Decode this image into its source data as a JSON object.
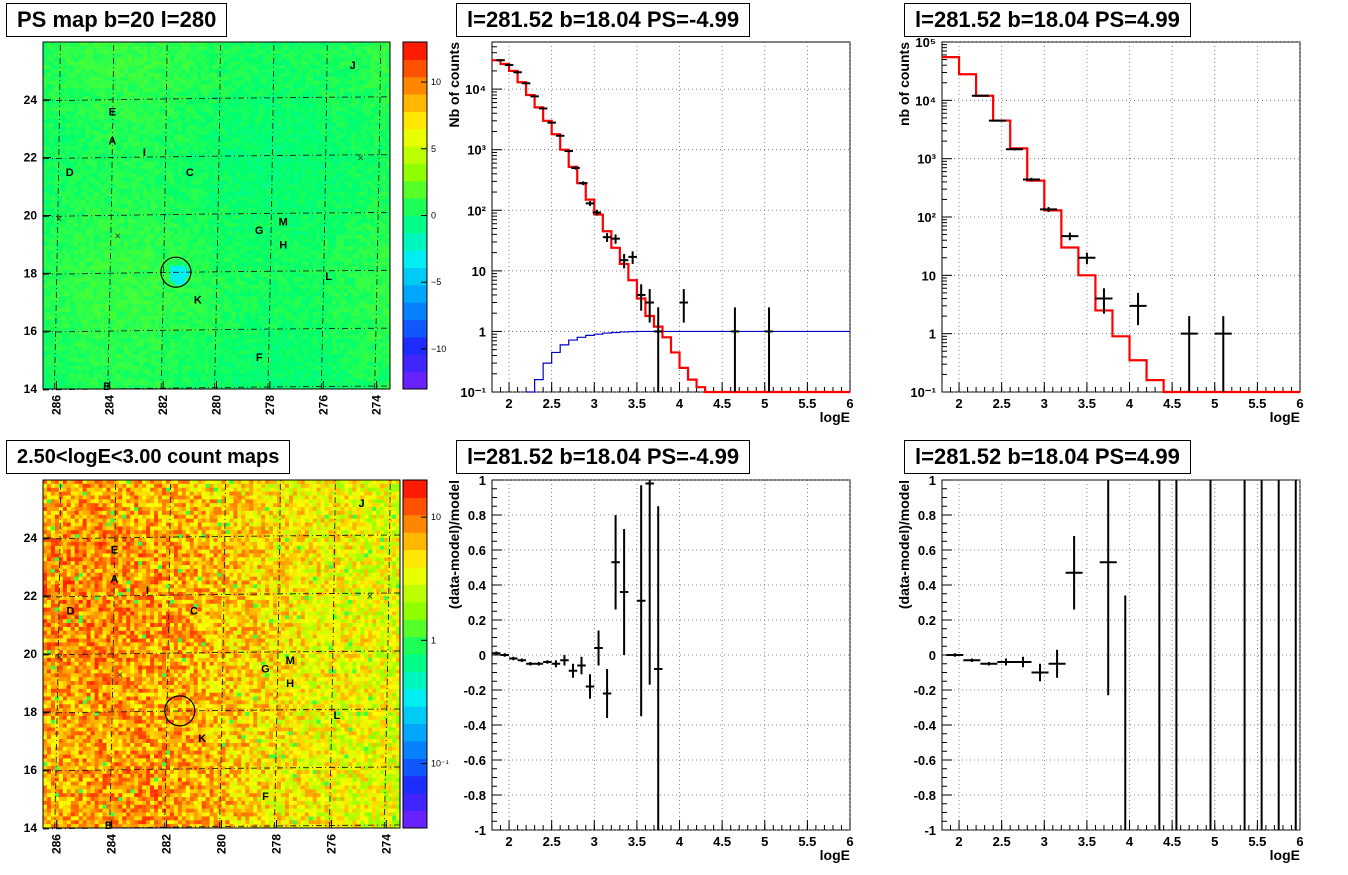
{
  "titles": {
    "ps_map": "PS map b=20 l=280",
    "count_map": "2.50<logE<3.00 count maps",
    "spec_left": "l=281.52 b=18.04 PS=-4.99",
    "spec_right": "l=281.52 b=18.04 PS=4.99",
    "ratio_left": "l=281.52 b=18.04 PS=-4.99",
    "ratio_right": "l=281.52 b=18.04 PS=4.99"
  },
  "colors": {
    "model": "#ff0000",
    "efficiency": "#0000cc",
    "data": "#000000"
  },
  "chart_data": [
    {
      "id": "ps_map",
      "type": "heatmap",
      "title": "PS map b=20 l=280",
      "xlim": [
        286.5,
        273.5
      ],
      "ylim": [
        14,
        26
      ],
      "xticks": [
        286,
        284,
        282,
        280,
        278,
        276,
        274
      ],
      "yticks": [
        14,
        16,
        18,
        20,
        22,
        24
      ],
      "colorbar": {
        "scale": "linear",
        "range": [
          -13,
          13
        ],
        "ticks": [
          -10,
          -5,
          0,
          5,
          10
        ],
        "tick_labels": [
          "−10",
          "−5",
          "0",
          "5",
          "10"
        ]
      },
      "sources": [
        {
          "label": "A",
          "l": 283.9,
          "b": 22.6
        },
        {
          "label": "B",
          "l": 284.1,
          "b": 14.1
        },
        {
          "label": "C",
          "l": 281.0,
          "b": 21.5
        },
        {
          "label": "D",
          "l": 285.5,
          "b": 21.5
        },
        {
          "label": "E",
          "l": 283.9,
          "b": 23.6
        },
        {
          "label": "F",
          "l": 278.4,
          "b": 15.1
        },
        {
          "label": "G",
          "l": 278.4,
          "b": 19.5
        },
        {
          "label": "H",
          "l": 277.5,
          "b": 19.0
        },
        {
          "label": "I",
          "l": 282.7,
          "b": 22.2
        },
        {
          "label": "J",
          "l": 274.9,
          "b": 25.2
        },
        {
          "label": "K",
          "l": 280.7,
          "b": 17.1
        },
        {
          "label": "L",
          "l": 275.8,
          "b": 17.9
        },
        {
          "label": "M",
          "l": 277.5,
          "b": 19.8
        }
      ],
      "markers_x": [
        {
          "l": 285.9,
          "b": 19.9
        },
        {
          "l": 283.7,
          "b": 19.3
        },
        {
          "l": 274.6,
          "b": 22.0
        }
      ],
      "circle": {
        "l": 281.52,
        "b": 18.04
      }
    },
    {
      "id": "count_map",
      "type": "heatmap",
      "title": "2.50<logE<3.00 count maps",
      "xlim": [
        286.5,
        273.5
      ],
      "ylim": [
        14,
        26
      ],
      "xticks": [
        286,
        284,
        282,
        280,
        278,
        276,
        274
      ],
      "yticks": [
        14,
        16,
        18,
        20,
        22,
        24
      ],
      "colorbar": {
        "scale": "log",
        "range": [
          0.03,
          20
        ],
        "ticks": [
          0.1,
          1,
          10
        ],
        "tick_labels": [
          "10⁻¹",
          "1",
          "10"
        ]
      },
      "sources_same_as": "ps_map"
    },
    {
      "id": "spec_left",
      "type": "line",
      "title": "l=281.52 b=18.04 PS=-4.99",
      "xlabel": "logE",
      "ylabel": "Nb of counts",
      "yscale": "log",
      "xlim": [
        1.8,
        6.0
      ],
      "ylim": [
        0.1,
        60000
      ],
      "xticks": [
        2,
        2.5,
        3,
        3.5,
        4,
        4.5,
        5,
        5.5,
        6
      ],
      "yticks": [
        0.1,
        1,
        10,
        100,
        1000,
        10000
      ],
      "ytick_labels": [
        "10⁻¹",
        "1",
        "10",
        "10²",
        "10³",
        "10⁴"
      ],
      "model_edges": [
        1.8,
        1.9,
        2.0,
        2.1,
        2.2,
        2.3,
        2.4,
        2.5,
        2.6,
        2.7,
        2.8,
        2.9,
        3.0,
        3.1,
        3.2,
        3.3,
        3.4,
        3.5,
        3.6,
        3.7,
        3.8,
        3.9,
        4.0,
        4.1,
        4.2,
        4.3,
        4.4,
        6.0
      ],
      "model_values": [
        30000,
        26000,
        20000,
        13000,
        8000,
        5000,
        3000,
        1800,
        1000,
        520,
        280,
        150,
        85,
        45,
        24,
        13,
        7,
        3.5,
        1.8,
        1.2,
        0.8,
        0.45,
        0.25,
        0.16,
        0.12,
        0.1,
        0.1
      ],
      "eff_edges": [
        2.2,
        2.3,
        2.4,
        2.5,
        2.6,
        2.7,
        2.8,
        2.9,
        3.0,
        3.1,
        3.2,
        3.3,
        3.4,
        3.5,
        3.6,
        6.0
      ],
      "eff_values": [
        0.1,
        0.16,
        0.3,
        0.45,
        0.6,
        0.72,
        0.8,
        0.86,
        0.9,
        0.94,
        0.96,
        0.98,
        0.99,
        1.0,
        1.0
      ],
      "points": [
        {
          "x": 1.9,
          "y": 30000,
          "xe": 0.05,
          "lo": 29000,
          "hi": 31000
        },
        {
          "x": 2.0,
          "y": 25000,
          "xe": 0.05,
          "lo": 24000,
          "hi": 26000
        },
        {
          "x": 2.1,
          "y": 19000,
          "xe": 0.05,
          "lo": 18000,
          "hi": 20000
        },
        {
          "x": 2.2,
          "y": 12500,
          "xe": 0.05,
          "lo": 12000,
          "hi": 13000
        },
        {
          "x": 2.3,
          "y": 7600,
          "xe": 0.05,
          "lo": 7400,
          "hi": 7800
        },
        {
          "x": 2.4,
          "y": 4800,
          "xe": 0.05,
          "lo": 4650,
          "hi": 4950
        },
        {
          "x": 2.5,
          "y": 2800,
          "xe": 0.05,
          "lo": 2700,
          "hi": 2900
        },
        {
          "x": 2.6,
          "y": 1700,
          "xe": 0.05,
          "lo": 1640,
          "hi": 1760
        },
        {
          "x": 2.7,
          "y": 950,
          "xe": 0.05,
          "lo": 910,
          "hi": 990
        },
        {
          "x": 2.78,
          "y": 500,
          "xe": 0.05,
          "lo": 470,
          "hi": 530
        },
        {
          "x": 2.87,
          "y": 280,
          "xe": 0.05,
          "lo": 260,
          "hi": 300
        },
        {
          "x": 2.95,
          "y": 130,
          "xe": 0.05,
          "lo": 118,
          "hi": 142
        },
        {
          "x": 3.03,
          "y": 92,
          "xe": 0.05,
          "lo": 82,
          "hi": 102
        },
        {
          "x": 3.15,
          "y": 36,
          "xe": 0.05,
          "lo": 30,
          "hi": 42
        },
        {
          "x": 3.25,
          "y": 34,
          "xe": 0.05,
          "lo": 28,
          "hi": 40
        },
        {
          "x": 3.35,
          "y": 15,
          "xe": 0.05,
          "lo": 11,
          "hi": 19
        },
        {
          "x": 3.45,
          "y": 17,
          "xe": 0.05,
          "lo": 13,
          "hi": 21
        },
        {
          "x": 3.55,
          "y": 4,
          "xe": 0.05,
          "lo": 2.2,
          "hi": 6
        },
        {
          "x": 3.65,
          "y": 3,
          "xe": 0.05,
          "lo": 1.4,
          "hi": 5
        },
        {
          "x": 3.75,
          "y": 1,
          "xe": 0.05,
          "lo": 0.1,
          "hi": 2.5
        },
        {
          "x": 4.05,
          "y": 3,
          "xe": 0.05,
          "lo": 1.4,
          "hi": 5
        },
        {
          "x": 4.65,
          "y": 1,
          "xe": 0.05,
          "lo": 0.1,
          "hi": 2.5
        },
        {
          "x": 5.05,
          "y": 1,
          "xe": 0.05,
          "lo": 0.1,
          "hi": 2.5
        }
      ]
    },
    {
      "id": "spec_right",
      "type": "line",
      "title": "l=281.52 b=18.04 PS=4.99",
      "xlabel": "logE",
      "ylabel": "nb of counts",
      "yscale": "log",
      "xlim": [
        1.8,
        6.0
      ],
      "ylim": [
        0.1,
        100000
      ],
      "xticks": [
        2,
        2.5,
        3,
        3.5,
        4,
        4.5,
        5,
        5.5,
        6
      ],
      "yticks": [
        0.1,
        1,
        10,
        100,
        1000,
        10000,
        100000
      ],
      "ytick_labels": [
        "10⁻¹",
        "1",
        "10",
        "10²",
        "10³",
        "10⁴",
        "10⁵"
      ],
      "model_edges": [
        1.8,
        2.0,
        2.2,
        2.4,
        2.6,
        2.8,
        3.0,
        3.2,
        3.4,
        3.6,
        3.8,
        4.0,
        4.2,
        4.4,
        6.0
      ],
      "model_values": [
        55000,
        28000,
        12000,
        4500,
        1500,
        420,
        130,
        30,
        10,
        2.5,
        0.9,
        0.35,
        0.16,
        0.1
      ],
      "points": [
        {
          "x": 2.25,
          "y": 12000,
          "xe": 0.1,
          "lo": 11700,
          "hi": 12300
        },
        {
          "x": 2.45,
          "y": 4500,
          "xe": 0.1,
          "lo": 4350,
          "hi": 4650
        },
        {
          "x": 2.65,
          "y": 1450,
          "xe": 0.1,
          "lo": 1390,
          "hi": 1510
        },
        {
          "x": 2.85,
          "y": 440,
          "xe": 0.1,
          "lo": 410,
          "hi": 470
        },
        {
          "x": 3.05,
          "y": 135,
          "xe": 0.1,
          "lo": 122,
          "hi": 148
        },
        {
          "x": 3.3,
          "y": 47,
          "xe": 0.1,
          "lo": 40,
          "hi": 54
        },
        {
          "x": 3.5,
          "y": 20,
          "xe": 0.1,
          "lo": 15.5,
          "hi": 24.5
        },
        {
          "x": 3.7,
          "y": 4,
          "xe": 0.1,
          "lo": 2.2,
          "hi": 6
        },
        {
          "x": 4.1,
          "y": 3,
          "xe": 0.1,
          "lo": 1.4,
          "hi": 5
        },
        {
          "x": 4.7,
          "y": 1,
          "xe": 0.1,
          "lo": 0.1,
          "hi": 2
        },
        {
          "x": 5.1,
          "y": 1,
          "xe": 0.1,
          "lo": 0.1,
          "hi": 2
        }
      ]
    },
    {
      "id": "ratio_left",
      "type": "scatter",
      "title": "l=281.52 b=18.04 PS=-4.99",
      "xlabel": "logE",
      "ylabel": "(data-model)/model",
      "xlim": [
        1.8,
        6.0
      ],
      "ylim": [
        -1,
        1
      ],
      "xticks": [
        2,
        2.5,
        3,
        3.5,
        4,
        4.5,
        5,
        5.5,
        6
      ],
      "yticks": [
        -1,
        -0.8,
        -0.6,
        -0.4,
        -0.2,
        0,
        0.2,
        0.4,
        0.6,
        0.8,
        1
      ],
      "points": [
        {
          "x": 1.85,
          "y": 0.01,
          "xe": 0.05,
          "lo": 0.0,
          "hi": 0.02
        },
        {
          "x": 1.95,
          "y": 0.0,
          "xe": 0.05,
          "lo": -0.01,
          "hi": 0.01
        },
        {
          "x": 2.05,
          "y": -0.02,
          "xe": 0.05,
          "lo": -0.03,
          "hi": -0.01
        },
        {
          "x": 2.15,
          "y": -0.03,
          "xe": 0.05,
          "lo": -0.04,
          "hi": -0.02
        },
        {
          "x": 2.25,
          "y": -0.05,
          "xe": 0.05,
          "lo": -0.06,
          "hi": -0.04
        },
        {
          "x": 2.35,
          "y": -0.05,
          "xe": 0.05,
          "lo": -0.06,
          "hi": -0.04
        },
        {
          "x": 2.45,
          "y": -0.04,
          "xe": 0.05,
          "lo": -0.05,
          "hi": -0.03
        },
        {
          "x": 2.55,
          "y": -0.05,
          "xe": 0.05,
          "lo": -0.07,
          "hi": -0.03
        },
        {
          "x": 2.65,
          "y": -0.03,
          "xe": 0.05,
          "lo": -0.06,
          "hi": 0.0
        },
        {
          "x": 2.75,
          "y": -0.09,
          "xe": 0.05,
          "lo": -0.13,
          "hi": -0.05
        },
        {
          "x": 2.85,
          "y": -0.06,
          "xe": 0.05,
          "lo": -0.11,
          "hi": -0.01
        },
        {
          "x": 2.95,
          "y": -0.18,
          "xe": 0.05,
          "lo": -0.25,
          "hi": -0.11
        },
        {
          "x": 3.05,
          "y": 0.04,
          "xe": 0.05,
          "lo": -0.06,
          "hi": 0.14
        },
        {
          "x": 3.15,
          "y": -0.22,
          "xe": 0.05,
          "lo": -0.36,
          "hi": -0.08
        },
        {
          "x": 3.25,
          "y": 0.53,
          "xe": 0.05,
          "lo": 0.26,
          "hi": 0.8
        },
        {
          "x": 3.35,
          "y": 0.36,
          "xe": 0.05,
          "lo": 0.0,
          "hi": 0.72
        },
        {
          "x": 3.55,
          "y": 0.31,
          "xe": 0.05,
          "lo": -0.35,
          "hi": 0.97
        },
        {
          "x": 3.65,
          "y": 0.98,
          "xe": 0.05,
          "lo": -0.17,
          "hi": 1.0
        },
        {
          "x": 3.75,
          "y": -0.08,
          "xe": 0.05,
          "lo": -1.0,
          "hi": 0.85
        }
      ]
    },
    {
      "id": "ratio_right",
      "type": "scatter",
      "title": "l=281.52 b=18.04 PS=4.99",
      "xlabel": "logE",
      "ylabel": "(data-model)/model",
      "xlim": [
        1.8,
        6.0
      ],
      "ylim": [
        -1,
        1
      ],
      "xticks": [
        2,
        2.5,
        3,
        3.5,
        4,
        4.5,
        5,
        5.5,
        6
      ],
      "yticks": [
        -1,
        -0.8,
        -0.6,
        -0.4,
        -0.2,
        0,
        0.2,
        0.4,
        0.6,
        0.8,
        1
      ],
      "points": [
        {
          "x": 1.95,
          "y": 0.0,
          "xe": 0.1,
          "lo": -0.01,
          "hi": 0.01
        },
        {
          "x": 2.15,
          "y": -0.03,
          "xe": 0.1,
          "lo": -0.04,
          "hi": -0.02
        },
        {
          "x": 2.35,
          "y": -0.05,
          "xe": 0.1,
          "lo": -0.06,
          "hi": -0.04
        },
        {
          "x": 2.55,
          "y": -0.04,
          "xe": 0.1,
          "lo": -0.06,
          "hi": -0.02
        },
        {
          "x": 2.75,
          "y": -0.04,
          "xe": 0.1,
          "lo": -0.07,
          "hi": -0.01
        },
        {
          "x": 2.95,
          "y": -0.1,
          "xe": 0.1,
          "lo": -0.15,
          "hi": -0.05
        },
        {
          "x": 3.15,
          "y": -0.05,
          "xe": 0.1,
          "lo": -0.13,
          "hi": 0.03
        },
        {
          "x": 3.35,
          "y": 0.47,
          "xe": 0.1,
          "lo": 0.26,
          "hi": 0.68
        },
        {
          "x": 3.75,
          "y": 0.53,
          "xe": 0.1,
          "lo": -0.23,
          "hi": 1.0
        },
        {
          "x": 3.95,
          "y": -1.0,
          "xe": 0.0,
          "lo": -1.0,
          "hi": 0.34
        },
        {
          "x": 4.35,
          "y": 0.0,
          "xe": 0.0,
          "lo": -1.0,
          "hi": 1.0
        },
        {
          "x": 4.55,
          "y": 0.0,
          "xe": 0.0,
          "lo": -1.0,
          "hi": 1.0
        },
        {
          "x": 4.95,
          "y": 0.0,
          "xe": 0.0,
          "lo": -1.0,
          "hi": 1.0
        },
        {
          "x": 5.35,
          "y": 0.0,
          "xe": 0.0,
          "lo": -1.0,
          "hi": 1.0
        },
        {
          "x": 5.55,
          "y": 0.0,
          "xe": 0.0,
          "lo": -1.0,
          "hi": 1.0
        },
        {
          "x": 5.75,
          "y": 0.0,
          "xe": 0.0,
          "lo": -1.0,
          "hi": 1.0
        },
        {
          "x": 5.95,
          "y": 0.0,
          "xe": 0.0,
          "lo": -1.0,
          "hi": 1.0
        }
      ]
    }
  ]
}
